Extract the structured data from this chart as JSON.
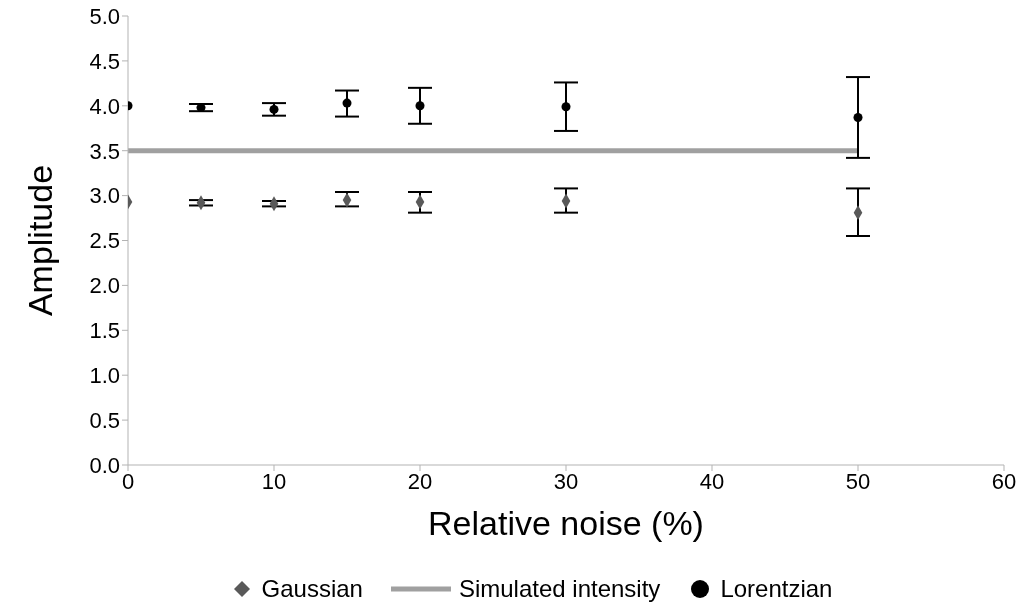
{
  "chart_data": {
    "type": "scatter",
    "xlabel": "Relative noise (%)",
    "ylabel": "Amplitude",
    "x": [
      0,
      5,
      10,
      15,
      20,
      30,
      50
    ],
    "series": [
      {
        "name": "Gaussian",
        "color": "#595959",
        "marker": "diamond",
        "values": [
          2.93,
          2.92,
          2.91,
          2.95,
          2.93,
          2.94,
          2.81
        ],
        "errors": [
          null,
          0.03,
          0.03,
          [
            2.88,
            3.04
          ],
          [
            2.81,
            3.04
          ],
          [
            2.81,
            3.08
          ],
          [
            2.55,
            3.08
          ]
        ]
      },
      {
        "name": "Simulated intensity",
        "type": "line",
        "color": "#a0a0a0",
        "x": [
          0,
          50
        ],
        "values": [
          3.5,
          3.5
        ]
      },
      {
        "name": "Lorentzian",
        "color": "#000000",
        "marker": "circle",
        "values": [
          4.0,
          3.98,
          3.96,
          4.03,
          4.0,
          3.99,
          3.87
        ],
        "errors": [
          null,
          0.04,
          0.07,
          [
            3.88,
            4.17
          ],
          0.2,
          [
            3.72,
            4.26
          ],
          [
            3.42,
            4.32
          ]
        ]
      }
    ],
    "xlim": [
      0,
      60
    ],
    "xticks": [
      0,
      10,
      20,
      30,
      40,
      50,
      60
    ],
    "ylim": [
      0,
      5
    ],
    "yticks": [
      {
        "value": 0,
        "label": "0.0"
      },
      {
        "value": 0.5,
        "label": "0.5"
      },
      {
        "value": 1,
        "label": "1.0"
      },
      {
        "value": 1.5,
        "label": "1.5"
      },
      {
        "value": 2,
        "label": "2.0"
      },
      {
        "value": 2.5,
        "label": "2.5"
      },
      {
        "value": 3,
        "label": "3.0"
      },
      {
        "value": 3.5,
        "label": "3.5"
      },
      {
        "value": 4,
        "label": "4.0"
      },
      {
        "value": 4.5,
        "label": "4.5"
      },
      {
        "value": 5,
        "label": "5.0"
      }
    ],
    "grid": false,
    "legend": "bottom"
  }
}
